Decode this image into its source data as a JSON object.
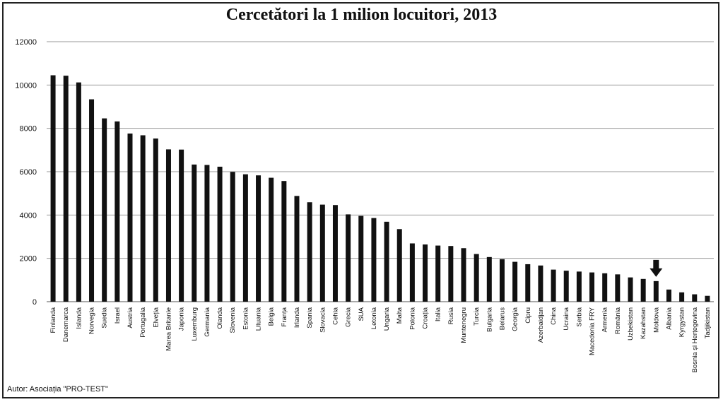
{
  "chart_data": {
    "type": "bar",
    "title": "Cercetători la 1 milion locuitori, 2013",
    "xlabel": "",
    "ylabel": "",
    "ylim": [
      0,
      12000
    ],
    "yticks": [
      0,
      2000,
      4000,
      6000,
      8000,
      10000,
      12000
    ],
    "grid": true,
    "legend": "none",
    "bar_color": "#111111",
    "highlight": {
      "category": "Moldova",
      "marker": "down-arrow"
    },
    "categories": [
      "Finlanda",
      "Danemarca",
      "Islanda",
      "Norvegia",
      "Suedia",
      "Israel",
      "Austria",
      "Portugalia",
      "Elveția",
      "Marea Britanie",
      "Japonia",
      "Luxemburg",
      "Germania",
      "Olanda",
      "Slovenia",
      "Estonia",
      "Lituania",
      "Belgia",
      "Franța",
      "Irlanda",
      "Spania",
      "Slovacia",
      "Cehia",
      "Grecia",
      "SUA",
      "Letonia",
      "Ungaria",
      "Malta",
      "Polonia",
      "Croația",
      "Italia",
      "Rusia",
      "Muntenegru",
      "Turcia",
      "Bulgaria",
      "Belarus",
      "Georgia",
      "Cipru",
      "Azerbaidjan",
      "China",
      "Ucraina",
      "Serbia",
      "Macedonia FRY",
      "Armenia",
      "România",
      "Uzbekistan",
      "Kazahstan",
      "Moldova",
      "Albania",
      "Kyrgystan",
      "Bosnia și Herțegovina",
      "Tadjikistan"
    ],
    "values": [
      10450,
      10430,
      10120,
      9340,
      8460,
      8320,
      7760,
      7680,
      7530,
      7030,
      7020,
      6330,
      6310,
      6230,
      5990,
      5880,
      5830,
      5720,
      5570,
      4880,
      4590,
      4480,
      4460,
      4030,
      3960,
      3860,
      3690,
      3350,
      2690,
      2640,
      2590,
      2570,
      2470,
      2200,
      2060,
      1960,
      1840,
      1730,
      1670,
      1480,
      1430,
      1390,
      1350,
      1310,
      1260,
      1120,
      1050,
      950,
      560,
      430,
      340,
      270
    ]
  },
  "footer": {
    "credit": "Autor: Asociația \"PRO-TEST\""
  }
}
